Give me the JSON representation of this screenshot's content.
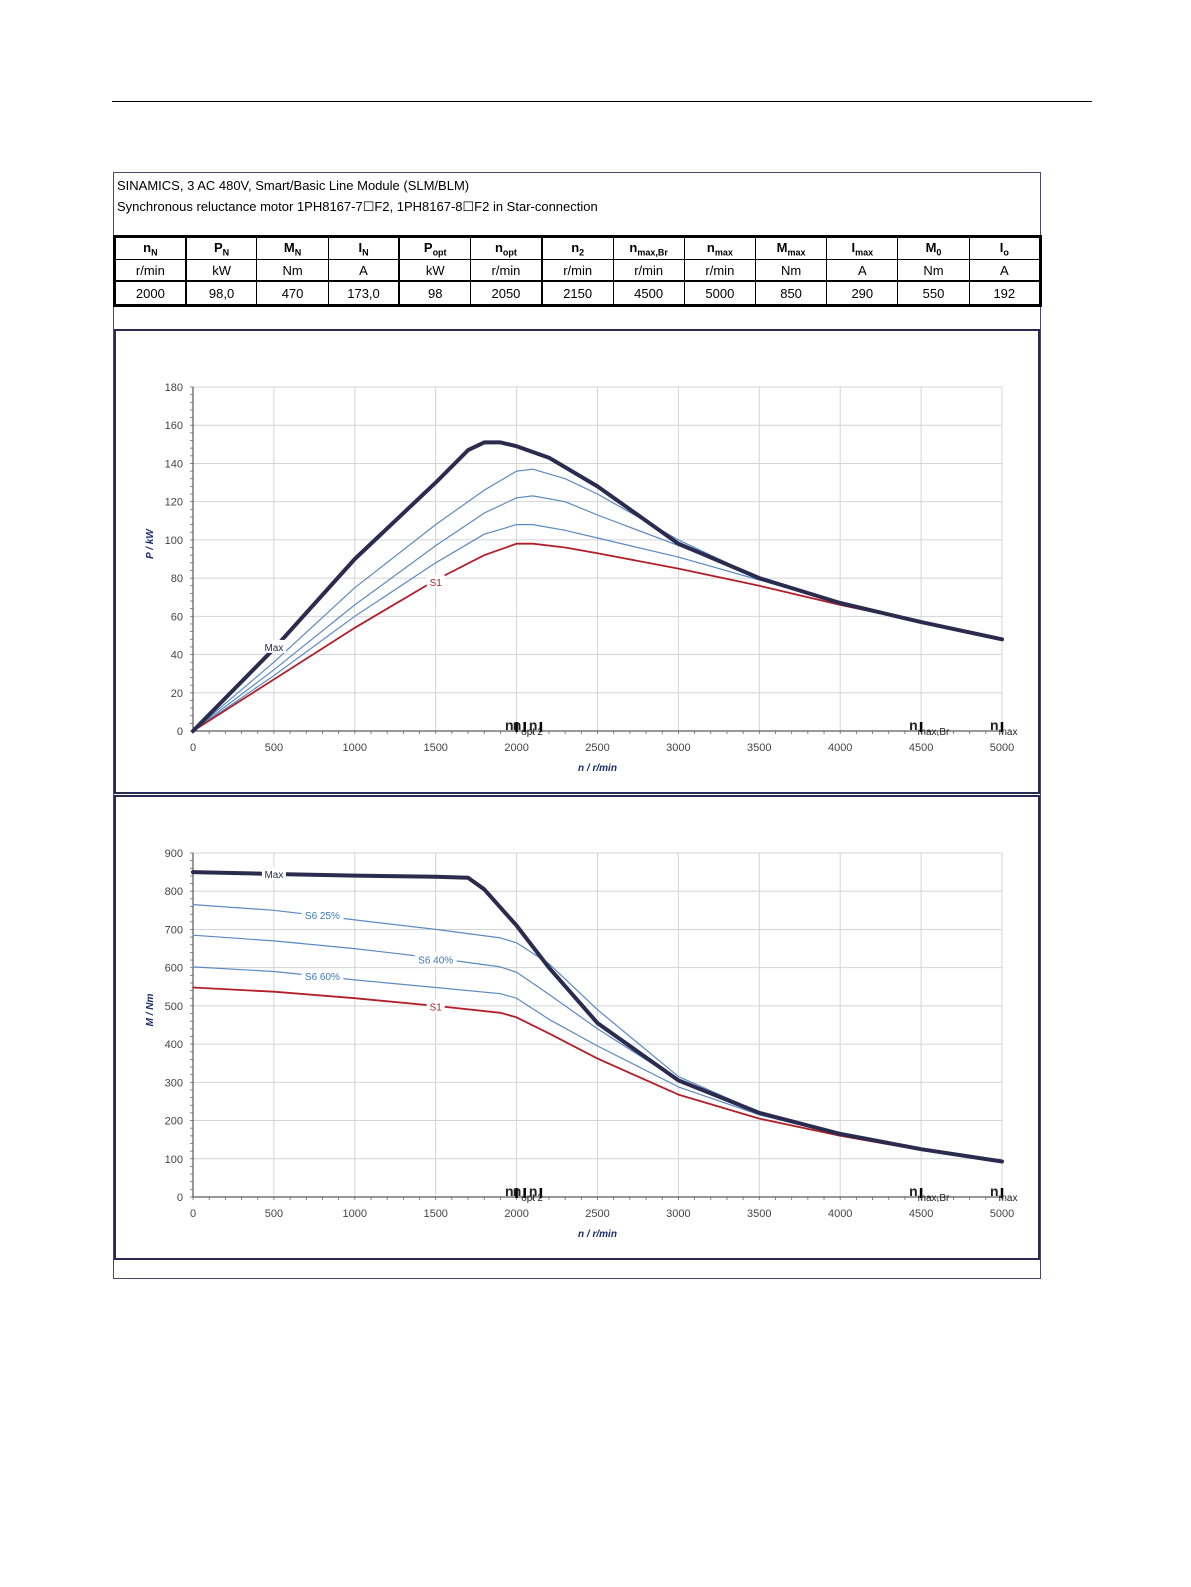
{
  "header": {
    "line1": "SINAMICS, 3 AC 480V, Smart/Basic Line Module (SLM/BLM)",
    "line2": "Synchronous reluctance motor  1PH8167-7☐F2,  1PH8167-8☐F2   in Star-connection"
  },
  "spec_table": {
    "columns": [
      {
        "sym": "n",
        "sub": "N",
        "unit": "r/min",
        "value": "2000"
      },
      {
        "sym": "P",
        "sub": "N",
        "unit": "kW",
        "value": "98,0"
      },
      {
        "sym": "M",
        "sub": "N",
        "unit": "Nm",
        "value": "470"
      },
      {
        "sym": "I",
        "sub": "N",
        "unit": "A",
        "value": "173,0"
      },
      {
        "sym": "P",
        "sub": "opt",
        "unit": "kW",
        "value": "98"
      },
      {
        "sym": "n",
        "sub": "opt",
        "unit": "r/min",
        "value": "2050"
      },
      {
        "sym": "n",
        "sub": "2",
        "unit": "r/min",
        "value": "2150"
      },
      {
        "sym": "n",
        "sub": "max,Br",
        "unit": "r/min",
        "value": "4500"
      },
      {
        "sym": "n",
        "sub": "max",
        "unit": "r/min",
        "value": "5000"
      },
      {
        "sym": "M",
        "sub": "max",
        "unit": "Nm",
        "value": "850"
      },
      {
        "sym": "I",
        "sub": "max",
        "unit": "A",
        "value": "290"
      },
      {
        "sym": "M",
        "sub": "0",
        "unit": "Nm",
        "value": "550"
      },
      {
        "sym": "I",
        "sub": "o",
        "unit": "A",
        "value": "192"
      }
    ]
  },
  "colors": {
    "max": "#2b2b4f",
    "s6": "#5b8ac2",
    "s1": "#b21f2a",
    "grid": "#d4d4d4",
    "label_s6": "#3f78b8"
  },
  "chart_data": [
    {
      "type": "line",
      "xlabel": "n / r/min",
      "ylabel": "P / kW",
      "xlim": [
        0,
        5000
      ],
      "ylim": [
        0,
        180
      ],
      "x_ticks": [
        0,
        500,
        1000,
        1500,
        2000,
        2500,
        3000,
        3500,
        4000,
        4500,
        5000
      ],
      "y_ticks": [
        0,
        20,
        40,
        60,
        80,
        100,
        120,
        140,
        160,
        180
      ],
      "grid": true,
      "series": [
        {
          "name": "Max",
          "style": "max",
          "points": [
            [
              0,
              0
            ],
            [
              500,
              43
            ],
            [
              1000,
              90
            ],
            [
              1500,
              130
            ],
            [
              1700,
              147
            ],
            [
              1800,
              151
            ],
            [
              1900,
              151
            ],
            [
              2000,
              149
            ],
            [
              2200,
              143
            ],
            [
              2500,
              128
            ],
            [
              3000,
              98
            ],
            [
              3500,
              80
            ],
            [
              4000,
              67
            ],
            [
              4500,
              57
            ],
            [
              5000,
              48
            ]
          ]
        },
        {
          "name": "",
          "style": "s6",
          "points": [
            [
              0,
              0
            ],
            [
              500,
              36
            ],
            [
              1000,
              75
            ],
            [
              1500,
              108
            ],
            [
              1800,
              126
            ],
            [
              2000,
              136
            ],
            [
              2100,
              137
            ],
            [
              2300,
              132
            ],
            [
              2500,
              124
            ],
            [
              3000,
              100
            ],
            [
              3500,
              80
            ],
            [
              4000,
              67
            ],
            [
              4500,
              57
            ],
            [
              5000,
              48
            ]
          ]
        },
        {
          "name": "",
          "style": "s6",
          "points": [
            [
              0,
              0
            ],
            [
              500,
              32
            ],
            [
              1000,
              66
            ],
            [
              1500,
              97
            ],
            [
              1800,
              114
            ],
            [
              2000,
              122
            ],
            [
              2100,
              123
            ],
            [
              2300,
              120
            ],
            [
              2500,
              113
            ],
            [
              3000,
              97
            ],
            [
              3500,
              80
            ],
            [
              4000,
              67
            ],
            [
              4500,
              57
            ],
            [
              5000,
              48
            ]
          ]
        },
        {
          "name": "",
          "style": "s6",
          "points": [
            [
              0,
              0
            ],
            [
              500,
              29
            ],
            [
              1000,
              60
            ],
            [
              1500,
              88
            ],
            [
              1800,
              103
            ],
            [
              2000,
              108
            ],
            [
              2100,
              108
            ],
            [
              2300,
              105
            ],
            [
              2500,
              101
            ],
            [
              3000,
              91
            ],
            [
              3500,
              79
            ],
            [
              4000,
              67
            ],
            [
              4500,
              57
            ],
            [
              5000,
              48
            ]
          ]
        },
        {
          "name": "S1",
          "style": "s1",
          "points": [
            [
              0,
              0
            ],
            [
              500,
              27
            ],
            [
              1000,
              54
            ],
            [
              1500,
              79
            ],
            [
              1800,
              92
            ],
            [
              2000,
              98
            ],
            [
              2100,
              98
            ],
            [
              2300,
              96
            ],
            [
              2500,
              93
            ],
            [
              3000,
              85
            ],
            [
              3500,
              76
            ],
            [
              4000,
              66
            ],
            [
              4500,
              57
            ],
            [
              5000,
              48
            ]
          ]
        }
      ],
      "annotations": [
        {
          "text": "Max",
          "x": 500,
          "y": 44,
          "style": "max"
        },
        {
          "text": "S1",
          "x": 1500,
          "y": 78,
          "style": "s1"
        }
      ],
      "markers": [
        {
          "n": 2000,
          "label": "n"
        },
        {
          "n": 2050,
          "label": "n",
          "sub": "opt"
        },
        {
          "n": 2150,
          "label": "n",
          "sub": "2"
        },
        {
          "n": 4500,
          "label": "n",
          "sub": "max,Br"
        },
        {
          "n": 5000,
          "label": "n",
          "sub": "max"
        }
      ]
    },
    {
      "type": "line",
      "xlabel": "n / r/min",
      "ylabel": "M / Nm",
      "xlim": [
        0,
        5000
      ],
      "ylim": [
        0,
        900
      ],
      "x_ticks": [
        0,
        500,
        1000,
        1500,
        2000,
        2500,
        3000,
        3500,
        4000,
        4500,
        5000
      ],
      "y_ticks": [
        0,
        100,
        200,
        300,
        400,
        500,
        600,
        700,
        800,
        900
      ],
      "grid": true,
      "series": [
        {
          "name": "Max",
          "style": "max",
          "points": [
            [
              0,
              850
            ],
            [
              500,
              845
            ],
            [
              1000,
              841
            ],
            [
              1500,
              838
            ],
            [
              1700,
              835
            ],
            [
              1800,
              805
            ],
            [
              2000,
              710
            ],
            [
              2200,
              600
            ],
            [
              2500,
              455
            ],
            [
              3000,
              305
            ],
            [
              3500,
              220
            ],
            [
              4000,
              165
            ],
            [
              4500,
              125
            ],
            [
              5000,
              93
            ]
          ]
        },
        {
          "name": "S6 25%",
          "style": "s6",
          "points": [
            [
              0,
              765
            ],
            [
              500,
              750
            ],
            [
              1000,
              725
            ],
            [
              1500,
              700
            ],
            [
              1900,
              678
            ],
            [
              2000,
              665
            ],
            [
              2200,
              610
            ],
            [
              2500,
              490
            ],
            [
              3000,
              315
            ],
            [
              3500,
              222
            ],
            [
              4000,
              165
            ],
            [
              4500,
              125
            ],
            [
              5000,
              93
            ]
          ]
        },
        {
          "name": "S6 40%",
          "style": "s6",
          "points": [
            [
              0,
              685
            ],
            [
              500,
              670
            ],
            [
              1000,
              650
            ],
            [
              1500,
              625
            ],
            [
              1900,
              602
            ],
            [
              2000,
              588
            ],
            [
              2200,
              530
            ],
            [
              2500,
              440
            ],
            [
              3000,
              305
            ],
            [
              3500,
              218
            ],
            [
              4000,
              164
            ],
            [
              4500,
              125
            ],
            [
              5000,
              93
            ]
          ]
        },
        {
          "name": "S6 60%",
          "style": "s6",
          "points": [
            [
              0,
              602
            ],
            [
              500,
              590
            ],
            [
              1000,
              568
            ],
            [
              1500,
              548
            ],
            [
              1900,
              532
            ],
            [
              2000,
              520
            ],
            [
              2200,
              465
            ],
            [
              2500,
              395
            ],
            [
              3000,
              288
            ],
            [
              3500,
              215
            ],
            [
              4000,
              163
            ],
            [
              4500,
              124
            ],
            [
              5000,
              93
            ]
          ]
        },
        {
          "name": "S1",
          "style": "s1",
          "points": [
            [
              0,
              548
            ],
            [
              500,
              537
            ],
            [
              1000,
              520
            ],
            [
              1500,
              500
            ],
            [
              1900,
              482
            ],
            [
              2000,
              470
            ],
            [
              2200,
              428
            ],
            [
              2500,
              362
            ],
            [
              3000,
              268
            ],
            [
              3500,
              205
            ],
            [
              4000,
              160
            ],
            [
              4500,
              123
            ],
            [
              5000,
              92
            ]
          ]
        }
      ],
      "annotations": [
        {
          "text": "Max",
          "x": 500,
          "y": 845,
          "style": "max"
        },
        {
          "text": "S6 25%",
          "x": 800,
          "y": 738,
          "style": "s6"
        },
        {
          "text": "S6 40%",
          "x": 1500,
          "y": 622,
          "style": "s6"
        },
        {
          "text": "S6 60%",
          "x": 800,
          "y": 578,
          "style": "s6"
        },
        {
          "text": "S1",
          "x": 1500,
          "y": 498,
          "style": "s1"
        }
      ],
      "markers": [
        {
          "n": 2000,
          "label": "n"
        },
        {
          "n": 2050,
          "label": "n",
          "sub": "opt"
        },
        {
          "n": 2150,
          "label": "n",
          "sub": "2"
        },
        {
          "n": 4500,
          "label": "n",
          "sub": "max,Br"
        },
        {
          "n": 5000,
          "label": "n",
          "sub": "max"
        }
      ]
    }
  ]
}
